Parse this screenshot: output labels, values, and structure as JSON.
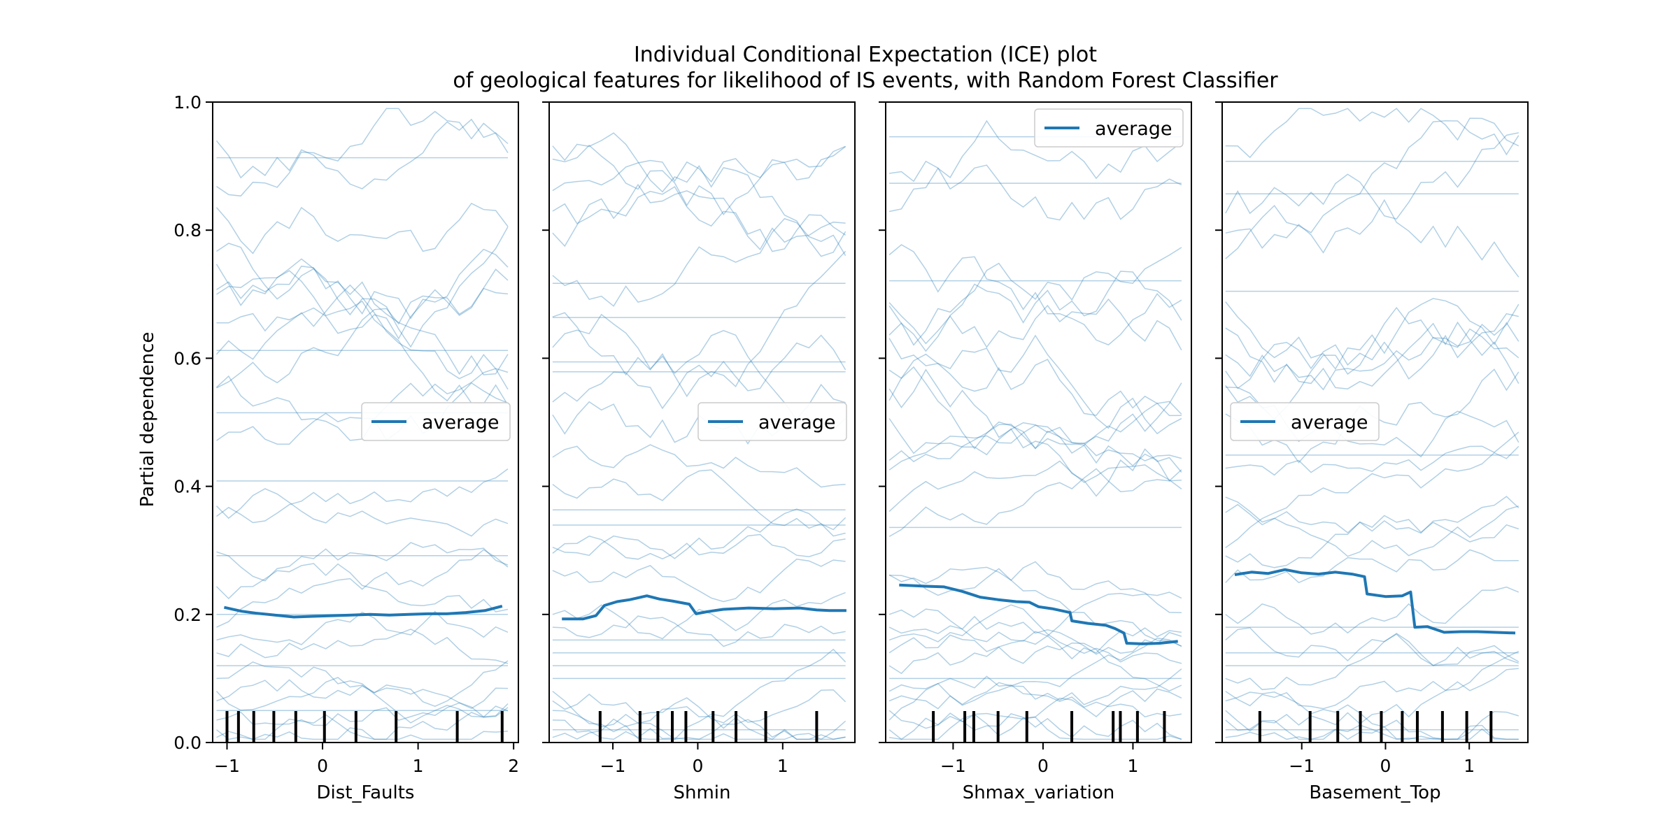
{
  "chart_data": {
    "type": "line",
    "title_line1": "Individual Conditional Expectation (ICE) plot",
    "title_line2": "of geological features for likelihood of IS events, with Random Forest Classifier",
    "ylabel": "Partial dependence",
    "ylim": [
      0.0,
      1.0
    ],
    "yticks": [
      "0.0",
      "0.2",
      "0.4",
      "0.6",
      "0.8",
      "1.0"
    ],
    "colors": {
      "ice": "#1f77b4",
      "average": "#1f77b4",
      "rug": "#000000"
    },
    "grid": false,
    "panels": [
      {
        "xlabel": "Dist_Faults",
        "xlim": [
          -1.15,
          2.05
        ],
        "xticks": [
          {
            "v": -1,
            "label": "−1"
          },
          {
            "v": 0,
            "label": "0"
          },
          {
            "v": 1,
            "label": "1"
          },
          {
            "v": 2,
            "label": "2"
          }
        ],
        "legend": {
          "label": "average",
          "placement": "center-right"
        },
        "average": {
          "x": [
            -1.03,
            -0.85,
            -0.7,
            -0.5,
            -0.3,
            -0.1,
            0.1,
            0.3,
            0.5,
            0.7,
            0.9,
            1.1,
            1.3,
            1.5,
            1.7,
            1.88
          ],
          "y": [
            0.211,
            0.205,
            0.202,
            0.199,
            0.196,
            0.197,
            0.198,
            0.199,
            0.2,
            0.199,
            0.2,
            0.201,
            0.201,
            0.203,
            0.206,
            0.213
          ]
        },
        "rug": [
          -1.0,
          -0.88,
          -0.72,
          -0.51,
          -0.28,
          0.02,
          0.35,
          0.77,
          1.41,
          1.88
        ]
      },
      {
        "xlabel": "Shmin",
        "xlim": [
          -1.75,
          1.85
        ],
        "xticks": [
          {
            "v": -1,
            "label": "−1"
          },
          {
            "v": 0,
            "label": "0"
          },
          {
            "v": 1,
            "label": "1"
          }
        ],
        "legend": {
          "label": "average",
          "placement": "center-right"
        },
        "average": {
          "x": [
            -1.6,
            -1.35,
            -1.2,
            -1.1,
            -0.95,
            -0.8,
            -0.6,
            -0.45,
            -0.3,
            -0.1,
            -0.02,
            0.1,
            0.3,
            0.6,
            0.9,
            1.2,
            1.4,
            1.55,
            1.75
          ],
          "y": [
            0.193,
            0.193,
            0.198,
            0.214,
            0.22,
            0.223,
            0.229,
            0.224,
            0.221,
            0.216,
            0.201,
            0.204,
            0.208,
            0.21,
            0.209,
            0.21,
            0.207,
            0.206,
            0.206
          ]
        },
        "rug": [
          -1.15,
          -0.68,
          -0.47,
          -0.3,
          -0.14,
          0.18,
          0.45,
          0.8,
          1.4
        ]
      },
      {
        "xlabel": "Shmax_variation",
        "xlim": [
          -1.75,
          1.65
        ],
        "xticks": [
          {
            "v": -1,
            "label": "−1"
          },
          {
            "v": 0,
            "label": "0"
          },
          {
            "v": 1,
            "label": "1"
          }
        ],
        "legend": {
          "label": "average",
          "placement": "top-right"
        },
        "average": {
          "x": [
            -1.6,
            -1.3,
            -1.1,
            -0.9,
            -0.7,
            -0.5,
            -0.3,
            -0.15,
            -0.05,
            0.1,
            0.3,
            0.32,
            0.5,
            0.7,
            0.8,
            0.9,
            0.93,
            1.1,
            1.3,
            1.5
          ],
          "y": [
            0.246,
            0.244,
            0.243,
            0.236,
            0.227,
            0.223,
            0.22,
            0.219,
            0.212,
            0.209,
            0.203,
            0.19,
            0.186,
            0.183,
            0.178,
            0.171,
            0.155,
            0.154,
            0.155,
            0.158
          ]
        },
        "rug": [
          -1.22,
          -0.87,
          -0.77,
          -0.5,
          -0.18,
          0.32,
          0.78,
          0.86,
          1.05,
          1.35
        ]
      },
      {
        "xlabel": "Basement_Top",
        "xlim": [
          -1.95,
          1.7
        ],
        "xticks": [
          {
            "v": -1,
            "label": "−1"
          },
          {
            "v": 0,
            "label": "0"
          },
          {
            "v": 1,
            "label": "1"
          }
        ],
        "legend": {
          "label": "average",
          "placement": "center-left"
        },
        "average": {
          "x": [
            -1.8,
            -1.6,
            -1.4,
            -1.2,
            -1.0,
            -0.8,
            -0.6,
            -0.4,
            -0.25,
            -0.22,
            0.0,
            0.2,
            0.3,
            0.35,
            0.5,
            0.7,
            0.9,
            1.1,
            1.3,
            1.55
          ],
          "y": [
            0.262,
            0.266,
            0.264,
            0.27,
            0.265,
            0.263,
            0.266,
            0.263,
            0.259,
            0.232,
            0.228,
            0.229,
            0.235,
            0.18,
            0.181,
            0.172,
            0.173,
            0.173,
            0.172,
            0.171
          ]
        },
        "rug": [
          -1.5,
          -0.9,
          -0.57,
          -0.3,
          -0.05,
          0.2,
          0.38,
          0.68,
          0.97,
          1.26
        ]
      }
    ]
  }
}
